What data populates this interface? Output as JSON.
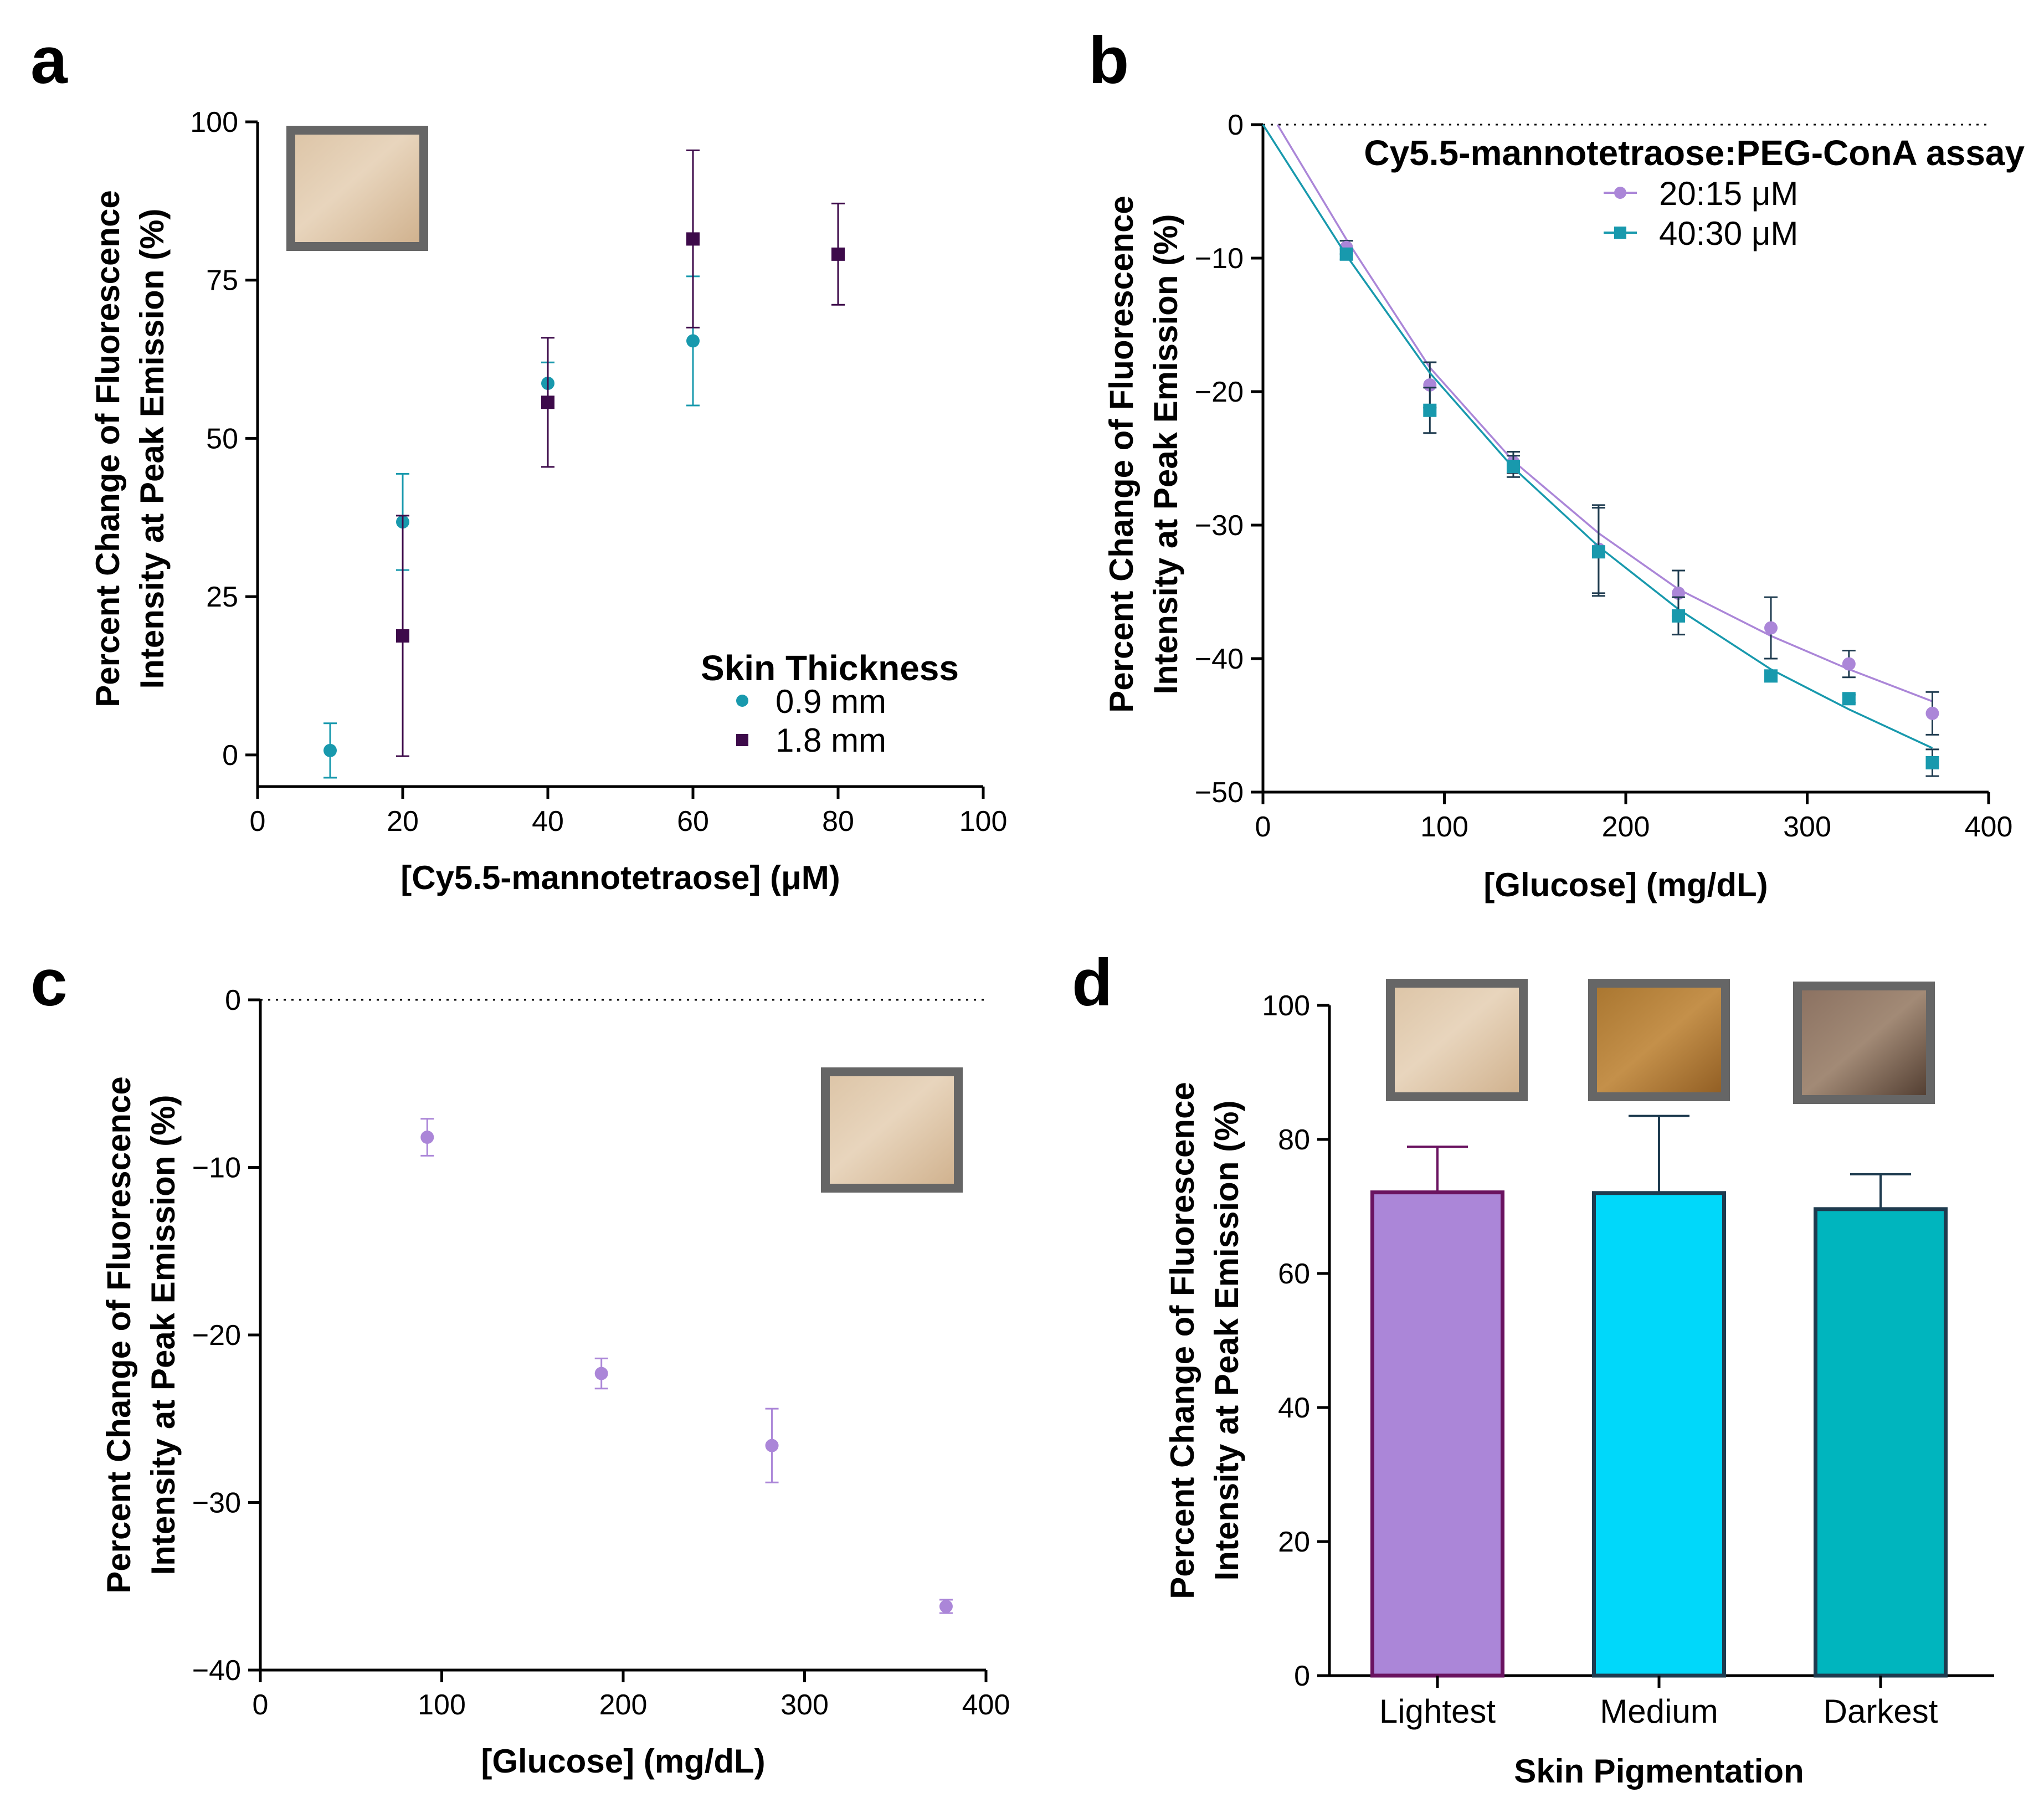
{
  "colors": {
    "teal": "#1899ad",
    "plum": "#3d0a4a",
    "lavender": "#ab86d8",
    "cyan": "#00d8fa",
    "darkcyan": "#00b5be",
    "barEdgeLight": "#6a1360",
    "barEdge": "#1e3b4f",
    "skinLight": "#e2ccb0",
    "skinMedium": "#b07a30",
    "skinDark": "#7b6354",
    "frame": "#666666"
  },
  "chart_data": [
    {
      "id": "a",
      "panel_label": "a",
      "type": "scatter",
      "xlabel": "[Cy5.5-mannotetraose] (μM)",
      "ylabel_lines": [
        "Percent Change of Fluorescence",
        "Intensity at Peak Emission (%)"
      ],
      "xlim": [
        0,
        100
      ],
      "ylim": [
        -5,
        100
      ],
      "xticks": [
        0,
        20,
        40,
        60,
        80,
        100
      ],
      "yticks": [
        0,
        25,
        50,
        75,
        100
      ],
      "legend_title": "Skin Thickness",
      "legend_position": "bottom-right",
      "inset_skin": "light",
      "series": [
        {
          "name": "0.9 mm",
          "marker": "circle",
          "color": "teal",
          "x": [
            10,
            20,
            40,
            60
          ],
          "y": [
            0.7,
            36.8,
            58.7,
            65.4
          ],
          "err": [
            4.3,
            7.6,
            3.3,
            10.2
          ]
        },
        {
          "name": "1.8 mm",
          "marker": "square",
          "color": "plum",
          "x": [
            20,
            40,
            60,
            80
          ],
          "y": [
            18.8,
            55.7,
            81.5,
            79.1
          ],
          "err": [
            19.0,
            10.2,
            14.0,
            8.0
          ]
        }
      ]
    },
    {
      "id": "b",
      "panel_label": "b",
      "type": "scatter",
      "xlabel": "[Glucose] (mg/dL)",
      "ylabel_lines": [
        "Percent Change of Fluorescence",
        "Intensity at Peak Emission (%)"
      ],
      "xlim": [
        0,
        400
      ],
      "ylim": [
        -50,
        0
      ],
      "xticks": [
        0,
        100,
        200,
        300,
        400
      ],
      "yticks": [
        0,
        -10,
        -20,
        -30,
        -40,
        -50
      ],
      "zero_line": true,
      "legend_title": "Cy5.5-mannotetraose:PEG-ConA assay",
      "legend_position": "top-right",
      "series": [
        {
          "name": "20:15 μM",
          "marker": "circle",
          "color": "lavender",
          "x": [
            46,
            92,
            138,
            185,
            229,
            280,
            323,
            369
          ],
          "y": [
            -9.2,
            -19.5,
            -25.3,
            -31.8,
            -35.1,
            -37.7,
            -40.4,
            -44.1
          ],
          "err": [
            0.5,
            1.7,
            0.8,
            3.3,
            1.7,
            2.3,
            1.0,
            1.6
          ],
          "fit": [
            [
              8,
              0
            ],
            [
              46,
              -8.6
            ],
            [
              92,
              -18.2
            ],
            [
              138,
              -25.2
            ],
            [
              185,
              -30.6
            ],
            [
              229,
              -34.8
            ],
            [
              280,
              -38.3
            ],
            [
              323,
              -40.8
            ],
            [
              369,
              -43.2
            ]
          ]
        },
        {
          "name": "40:30 μM",
          "marker": "square",
          "color": "teal",
          "x": [
            46,
            92,
            138,
            185,
            229,
            280,
            323,
            369
          ],
          "y": [
            -9.7,
            -21.4,
            -25.6,
            -32.0,
            -36.8,
            -41.3,
            -43.0,
            -47.8
          ],
          "err": [
            0.4,
            1.7,
            0.8,
            3.3,
            1.4,
            0.4,
            0.3,
            1.0
          ],
          "fit": [
            [
              0,
              0
            ],
            [
              46,
              -9.8
            ],
            [
              92,
              -18.6
            ],
            [
              138,
              -25.7
            ],
            [
              185,
              -31.6
            ],
            [
              229,
              -36.3
            ],
            [
              280,
              -40.8
            ],
            [
              323,
              -43.8
            ],
            [
              369,
              -46.7
            ]
          ]
        }
      ]
    },
    {
      "id": "c",
      "panel_label": "c",
      "type": "scatter",
      "xlabel": "[Glucose] (mg/dL)",
      "ylabel_lines": [
        "Percent Change of Fluorescence",
        "Intensity at Peak Emission (%)"
      ],
      "xlim": [
        0,
        400
      ],
      "ylim": [
        -40,
        0
      ],
      "xticks": [
        0,
        100,
        200,
        300,
        400
      ],
      "yticks": [
        0,
        -10,
        -20,
        -30,
        -40
      ],
      "zero_line": true,
      "inset_skin": "light",
      "series": [
        {
          "name": "",
          "marker": "circle",
          "color": "lavender",
          "x": [
            92,
            188,
            282,
            378
          ],
          "y": [
            -8.2,
            -22.3,
            -26.6,
            -36.2
          ],
          "err": [
            1.1,
            0.9,
            2.2,
            0.4
          ]
        }
      ]
    },
    {
      "id": "d",
      "panel_label": "d",
      "type": "bar",
      "xlabel": "Skin Pigmentation",
      "ylabel_lines": [
        "Percent Change of Fluorescence",
        "Intensity at Peak Emission (%)"
      ],
      "ylim": [
        0,
        100
      ],
      "yticks": [
        0,
        20,
        40,
        60,
        80,
        100
      ],
      "categories": [
        "Lightest",
        "Medium",
        "Darkest"
      ],
      "values": [
        72.1,
        72.0,
        69.6
      ],
      "err": [
        6.8,
        11.5,
        5.2
      ],
      "bar_colors": [
        "lavender",
        "cyan",
        "darkcyan"
      ],
      "edge_colors": [
        "barEdgeLight",
        "barEdge",
        "barEdge"
      ],
      "inset_skins": [
        "light",
        "medium",
        "dark"
      ]
    }
  ]
}
